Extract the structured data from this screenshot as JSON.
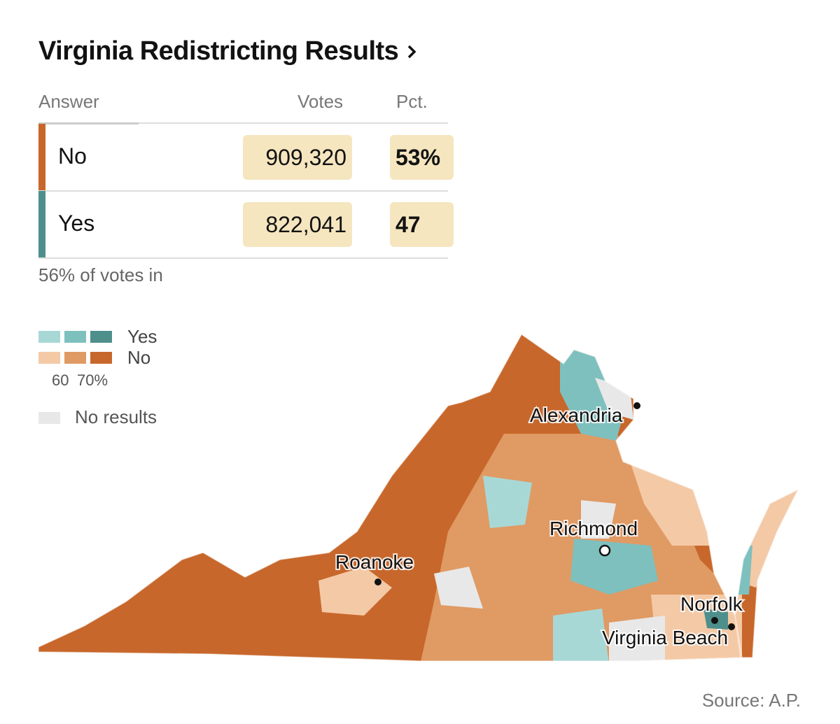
{
  "header": {
    "title": "Virginia Redistricting Results"
  },
  "table": {
    "columns": [
      "Answer",
      "Votes",
      "Pct."
    ],
    "rows": [
      [
        "No",
        "909,320",
        "53%"
      ],
      [
        "Yes",
        "822,041",
        "47"
      ]
    ],
    "footnote": "56% of votes in"
  },
  "legend": {
    "yes": "Yes",
    "no": "No",
    "scale": [
      "60",
      "70%"
    ],
    "no_results": "No results"
  },
  "map": {
    "cities": [
      "Alexandria",
      "Richmond",
      "Roanoke",
      "Norfolk",
      "Virginia Beach"
    ]
  },
  "source": "Source: A.P."
}
